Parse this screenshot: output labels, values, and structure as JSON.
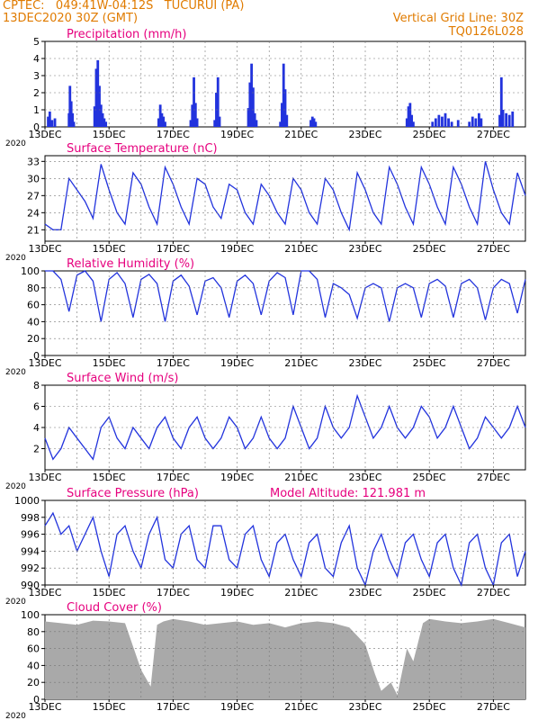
{
  "header": {
    "line1_left": "CPTEC:   049:41W-04:12S   TUCURUI (PA)",
    "line2_left": "13DEC2020 30Z (GMT)",
    "line1_right": "Vertical Grid Line: 30Z",
    "line2_right": "TQ0126L028",
    "color": "#e07b00"
  },
  "axis": {
    "date_labels": [
      "13DEC",
      "15DEC",
      "17DEC",
      "19DEC",
      "21DEC",
      "23DEC",
      "25DEC",
      "27DEC"
    ],
    "year_label": "2020",
    "vertical_grid_spacing_days": 1,
    "x_range_days": [
      0,
      15
    ]
  },
  "colors": {
    "title": "#e6007e",
    "line": "#2233dd",
    "bar": "#2233dd",
    "cloud": "#a9a9a9",
    "grid": "#777777",
    "frame": "#000000"
  },
  "chart_data": [
    {
      "id": "precip",
      "type": "bar",
      "title": "Precipitation (mm/h)",
      "ylim": [
        0,
        5
      ],
      "yticks": [
        "0",
        "1",
        "2",
        "3",
        "4",
        "5"
      ],
      "grid": true,
      "x_days": [
        0.1,
        0.15,
        0.22,
        0.31,
        0.75,
        0.78,
        0.82,
        0.86,
        0.9,
        1.55,
        1.6,
        1.65,
        1.7,
        1.75,
        1.8,
        1.85,
        1.9,
        3.55,
        3.6,
        3.65,
        3.7,
        3.75,
        4.55,
        4.6,
        4.65,
        4.7,
        4.75,
        5.3,
        5.35,
        5.4,
        5.45,
        6.35,
        6.4,
        6.45,
        6.5,
        6.55,
        6.6,
        7.35,
        7.4,
        7.45,
        7.5,
        7.55,
        8.3,
        8.35,
        8.4,
        8.45,
        11.3,
        11.35,
        11.4,
        11.45,
        11.5,
        12.1,
        12.2,
        12.3,
        12.4,
        12.5,
        12.6,
        12.7,
        12.9,
        13.25,
        13.35,
        13.45,
        13.55,
        13.62,
        14.2,
        14.25,
        14.3,
        14.4,
        14.5,
        14.6
      ],
      "values": [
        0.6,
        0.9,
        0.4,
        0.5,
        0.8,
        2.4,
        1.5,
        0.8,
        0.3,
        1.2,
        3.4,
        3.9,
        2.4,
        1.3,
        0.8,
        0.5,
        0.3,
        0.5,
        1.3,
        0.8,
        0.6,
        0.3,
        0.4,
        1.3,
        2.9,
        1.4,
        0.5,
        0.4,
        2.0,
        2.9,
        0.6,
        1.1,
        2.6,
        3.7,
        2.3,
        0.8,
        0.4,
        0.3,
        1.4,
        3.7,
        2.2,
        0.7,
        0.4,
        0.6,
        0.5,
        0.3,
        0.5,
        1.2,
        1.4,
        0.7,
        0.3,
        0.3,
        0.5,
        0.7,
        0.6,
        0.8,
        0.5,
        0.3,
        0.4,
        0.3,
        0.6,
        0.5,
        0.8,
        0.5,
        0.7,
        2.9,
        1.0,
        0.8,
        0.7,
        0.9
      ]
    },
    {
      "id": "temp",
      "type": "line",
      "title": "Surface Temperature (nC)",
      "ylim": [
        19,
        34
      ],
      "yticks": [
        "21",
        "24",
        "27",
        "30",
        "33"
      ],
      "ytick_values": [
        21,
        24,
        27,
        30,
        33
      ],
      "grid": true,
      "x_days": [
        0,
        0.25,
        0.5,
        0.75,
        1,
        1.25,
        1.5,
        1.75,
        2,
        2.25,
        2.5,
        2.75,
        3,
        3.25,
        3.5,
        3.75,
        4,
        4.25,
        4.5,
        4.75,
        5,
        5.25,
        5.5,
        5.75,
        6,
        6.25,
        6.5,
        6.75,
        7,
        7.25,
        7.5,
        7.75,
        8,
        8.25,
        8.5,
        8.75,
        9,
        9.25,
        9.5,
        9.75,
        10,
        10.25,
        10.5,
        10.75,
        11,
        11.25,
        11.5,
        11.75,
        12,
        12.25,
        12.5,
        12.75,
        13,
        13.25,
        13.5,
        13.75,
        14,
        14.25,
        14.5,
        14.75,
        15
      ],
      "values": [
        22,
        21,
        21,
        30,
        28,
        26,
        23,
        32.5,
        28,
        24,
        22,
        31,
        29,
        25,
        22,
        32,
        29,
        25,
        22,
        30,
        29,
        25,
        23,
        29,
        28,
        24,
        22,
        29,
        27,
        24,
        22,
        30,
        28,
        24,
        22,
        30,
        28,
        24,
        21,
        31,
        28,
        24,
        22,
        32,
        29,
        25,
        22,
        32,
        29,
        25,
        22,
        32,
        29,
        25,
        22,
        33,
        28,
        24,
        22,
        31,
        27
      ]
    },
    {
      "id": "rh",
      "type": "line",
      "title": "Relative Humidity (%)",
      "ylim": [
        0,
        100
      ],
      "yticks": [
        "0",
        "20",
        "40",
        "60",
        "80",
        "100"
      ],
      "ytick_values": [
        0,
        20,
        40,
        60,
        80,
        100
      ],
      "grid": true,
      "x_days": [
        0,
        0.25,
        0.5,
        0.75,
        1,
        1.25,
        1.5,
        1.75,
        2,
        2.25,
        2.5,
        2.75,
        3,
        3.25,
        3.5,
        3.75,
        4,
        4.25,
        4.5,
        4.75,
        5,
        5.25,
        5.5,
        5.75,
        6,
        6.25,
        6.5,
        6.75,
        7,
        7.25,
        7.5,
        7.75,
        8,
        8.25,
        8.5,
        8.75,
        9,
        9.25,
        9.5,
        9.75,
        10,
        10.25,
        10.5,
        10.75,
        11,
        11.25,
        11.5,
        11.75,
        12,
        12.25,
        12.5,
        12.75,
        13,
        13.25,
        13.5,
        13.75,
        14,
        14.25,
        14.5,
        14.75,
        15
      ],
      "values": [
        100,
        100,
        90,
        52,
        95,
        100,
        88,
        40,
        90,
        98,
        85,
        45,
        90,
        96,
        85,
        40,
        88,
        95,
        82,
        48,
        88,
        92,
        80,
        45,
        88,
        95,
        85,
        48,
        88,
        98,
        92,
        48,
        100,
        100,
        90,
        45,
        85,
        80,
        72,
        44,
        80,
        85,
        80,
        40,
        80,
        85,
        80,
        45,
        85,
        90,
        82,
        45,
        85,
        90,
        80,
        42,
        80,
        90,
        85,
        50,
        90
      ]
    },
    {
      "id": "wind",
      "type": "line",
      "title": "Surface Wind (m/s)",
      "ylim": [
        0,
        8
      ],
      "yticks": [
        "2",
        "4",
        "6",
        "8"
      ],
      "ytick_values": [
        2,
        4,
        6,
        8
      ],
      "grid": true,
      "x_days": [
        0,
        0.25,
        0.5,
        0.75,
        1,
        1.25,
        1.5,
        1.75,
        2,
        2.25,
        2.5,
        2.75,
        3,
        3.25,
        3.5,
        3.75,
        4,
        4.25,
        4.5,
        4.75,
        5,
        5.25,
        5.5,
        5.75,
        6,
        6.25,
        6.5,
        6.75,
        7,
        7.25,
        7.5,
        7.75,
        8,
        8.25,
        8.5,
        8.75,
        9,
        9.25,
        9.5,
        9.75,
        10,
        10.25,
        10.5,
        10.75,
        11,
        11.25,
        11.5,
        11.75,
        12,
        12.25,
        12.5,
        12.75,
        13,
        13.25,
        13.5,
        13.75,
        14,
        14.25,
        14.5,
        14.75,
        15
      ],
      "values": [
        3,
        1,
        2,
        4,
        3,
        2,
        1,
        4,
        5,
        3,
        2,
        4,
        3,
        2,
        4,
        5,
        3,
        2,
        4,
        5,
        3,
        2,
        3,
        5,
        4,
        2,
        3,
        5,
        3,
        2,
        3,
        6,
        4,
        2,
        3,
        6,
        4,
        3,
        4,
        7,
        5,
        3,
        4,
        6,
        4,
        3,
        4,
        6,
        5,
        3,
        4,
        6,
        4,
        2,
        3,
        5,
        4,
        3,
        4,
        6,
        4
      ]
    },
    {
      "id": "pressure",
      "type": "line",
      "title": "Surface Pressure (hPa)",
      "ylim": [
        990,
        1000
      ],
      "yticks": [
        "990",
        "992",
        "994",
        "996",
        "998",
        "1000"
      ],
      "ytick_values": [
        990,
        992,
        994,
        996,
        998,
        1000
      ],
      "grid": true,
      "annotation": "Model Altitude: 121.981 m",
      "x_days": [
        0,
        0.25,
        0.5,
        0.75,
        1,
        1.25,
        1.5,
        1.75,
        2,
        2.25,
        2.5,
        2.75,
        3,
        3.25,
        3.5,
        3.75,
        4,
        4.25,
        4.5,
        4.75,
        5,
        5.25,
        5.5,
        5.75,
        6,
        6.25,
        6.5,
        6.75,
        7,
        7.25,
        7.5,
        7.75,
        8,
        8.25,
        8.5,
        8.75,
        9,
        9.25,
        9.5,
        9.75,
        10,
        10.25,
        10.5,
        10.75,
        11,
        11.25,
        11.5,
        11.75,
        12,
        12.25,
        12.5,
        12.75,
        13,
        13.25,
        13.5,
        13.75,
        14,
        14.25,
        14.5,
        14.75,
        15
      ],
      "values": [
        997,
        998.5,
        996,
        997,
        994,
        996,
        998,
        994,
        991,
        996,
        997,
        994,
        992,
        996,
        998,
        993,
        992,
        996,
        997,
        993,
        992,
        997,
        997,
        993,
        992,
        996,
        997,
        993,
        991,
        995,
        996,
        993,
        991,
        995,
        996,
        992,
        991,
        995,
        997,
        992,
        990,
        994,
        996,
        993,
        991,
        995,
        996,
        993,
        991,
        995,
        996,
        992,
        990,
        995,
        996,
        992,
        990,
        995,
        996,
        991,
        994
      ]
    },
    {
      "id": "cloud",
      "type": "area",
      "title": "Cloud Cover (%)",
      "ylim": [
        0,
        100
      ],
      "yticks": [
        "0",
        "20",
        "40",
        "60",
        "80",
        "100"
      ],
      "ytick_values": [
        0,
        20,
        40,
        60,
        80,
        100
      ],
      "grid": true,
      "x_days": [
        0,
        0.5,
        1,
        1.5,
        2,
        2.5,
        3,
        3.3,
        3.5,
        3.7,
        4,
        4.5,
        5,
        5.5,
        6,
        6.5,
        7,
        7.5,
        8,
        8.5,
        9,
        9.5,
        10,
        10.3,
        10.5,
        10.8,
        11,
        11.3,
        11.5,
        11.8,
        12,
        12.5,
        13,
        13.5,
        14,
        14.5,
        15
      ],
      "values": [
        92,
        90,
        88,
        93,
        92,
        90,
        35,
        15,
        88,
        92,
        95,
        92,
        88,
        90,
        92,
        88,
        90,
        85,
        90,
        92,
        90,
        85,
        65,
        30,
        10,
        20,
        5,
        60,
        45,
        90,
        95,
        92,
        90,
        92,
        95,
        90,
        85
      ]
    }
  ]
}
